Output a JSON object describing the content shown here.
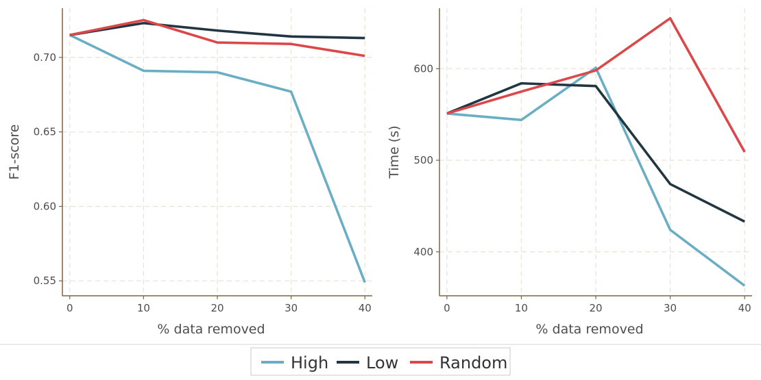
{
  "chart_data": [
    {
      "type": "line",
      "title": "",
      "xlabel": "% data removed",
      "ylabel": "F1-score",
      "x": [
        0,
        10,
        20,
        30,
        40
      ],
      "xticks": [
        "0",
        "10",
        "20",
        "30",
        "40"
      ],
      "yticks": [
        "0.55",
        "0.60",
        "0.65",
        "0.70"
      ],
      "ytick_values": [
        0.55,
        0.6,
        0.65,
        0.7
      ],
      "xlim": [
        -1,
        41
      ],
      "ylim": [
        0.54,
        0.733
      ],
      "grid": true,
      "series": [
        {
          "name": "High",
          "values": [
            0.715,
            0.691,
            0.69,
            0.677,
            0.549
          ]
        },
        {
          "name": "Low",
          "values": [
            0.715,
            0.723,
            0.718,
            0.714,
            0.713
          ]
        },
        {
          "name": "Random",
          "values": [
            0.715,
            0.725,
            0.71,
            0.709,
            0.701
          ]
        }
      ]
    },
    {
      "type": "line",
      "title": "",
      "xlabel": "% data removed",
      "ylabel": "Time (s)",
      "x": [
        0,
        10,
        20,
        30,
        40
      ],
      "xticks": [
        "0",
        "10",
        "20",
        "30",
        "40"
      ],
      "yticks": [
        "400",
        "500",
        "600"
      ],
      "ytick_values": [
        400,
        500,
        600
      ],
      "xlim": [
        -1,
        41
      ],
      "ylim": [
        352,
        666
      ],
      "grid": true,
      "series": [
        {
          "name": "High",
          "values": [
            551,
            544,
            601,
            424,
            363
          ]
        },
        {
          "name": "Low",
          "values": [
            551,
            584,
            581,
            474,
            433
          ]
        },
        {
          "name": "Random",
          "values": [
            551,
            575,
            598,
            655,
            509
          ]
        }
      ]
    }
  ],
  "legend": {
    "position": "bottom",
    "items": [
      {
        "label": "High",
        "color": "#6aaec4"
      },
      {
        "label": "Low",
        "color": "#213642"
      },
      {
        "label": "Random",
        "color": "#dc474a"
      }
    ]
  },
  "colors": {
    "axis": "#7b6248",
    "grid": "#ece3d6",
    "text": "#4d4d4d"
  }
}
